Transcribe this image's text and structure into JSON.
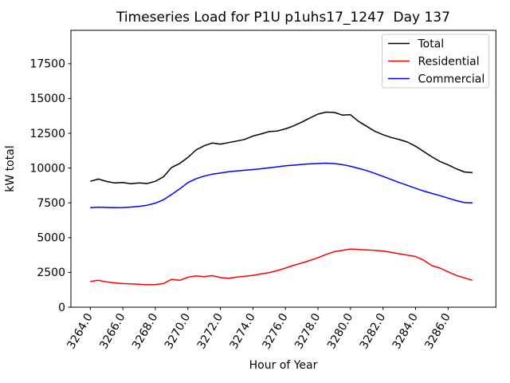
{
  "chart_data": {
    "type": "line",
    "title": "Timeseries Load for P1U p1uhs17_1247  Day 137",
    "xlabel": "Hour of Year",
    "ylabel": "kW total",
    "xlim": [
      3262.81,
      3288.94
    ],
    "ylim": [
      0,
      19900
    ],
    "grid": false,
    "legend_position": "upper right",
    "xticks": {
      "values": [
        3264,
        3266,
        3268,
        3270,
        3272,
        3274,
        3276,
        3278,
        3280,
        3282,
        3284,
        3286
      ],
      "labels": [
        "3264.0",
        "3266.0",
        "3268.0",
        "3270.0",
        "3272.0",
        "3274.0",
        "3276.0",
        "3278.0",
        "3280.0",
        "3282.0",
        "3284.0",
        "3286.0"
      ],
      "rotation": 60
    },
    "yticks": {
      "values": [
        0,
        2500,
        5000,
        7500,
        10000,
        12500,
        15000,
        17500
      ],
      "labels": [
        "0",
        "2500",
        "5000",
        "7500",
        "10000",
        "12500",
        "15000",
        "17500"
      ]
    },
    "x": [
      3264.0,
      3264.5,
      3265.0,
      3265.5,
      3266.0,
      3266.5,
      3267.0,
      3267.5,
      3268.0,
      3268.5,
      3269.0,
      3269.5,
      3270.0,
      3270.5,
      3271.0,
      3271.5,
      3272.0,
      3272.5,
      3273.0,
      3273.5,
      3274.0,
      3274.5,
      3275.0,
      3275.5,
      3276.0,
      3276.5,
      3277.0,
      3277.5,
      3278.0,
      3278.5,
      3279.0,
      3279.5,
      3280.0,
      3280.5,
      3281.0,
      3281.5,
      3282.0,
      3282.5,
      3283.0,
      3283.5,
      3284.0,
      3284.5,
      3285.0,
      3285.5,
      3286.0,
      3286.5,
      3287.0,
      3287.5
    ],
    "series": [
      {
        "name": "Total",
        "color": "#000000",
        "values": [
          9050,
          9210,
          9040,
          8930,
          8960,
          8870,
          8930,
          8890,
          9050,
          9370,
          10040,
          10330,
          10760,
          11300,
          11600,
          11800,
          11720,
          11830,
          11940,
          12060,
          12300,
          12450,
          12620,
          12660,
          12820,
          13030,
          13300,
          13600,
          13880,
          14020,
          14000,
          13810,
          13830,
          13350,
          13000,
          12640,
          12400,
          12200,
          12050,
          11870,
          11570,
          11190,
          10810,
          10470,
          10230,
          9950,
          9720,
          9670
        ]
      },
      {
        "name": "Residential",
        "color": "#ff0000",
        "values": [
          1850,
          1940,
          1810,
          1750,
          1700,
          1680,
          1650,
          1610,
          1630,
          1700,
          2000,
          1930,
          2150,
          2250,
          2190,
          2270,
          2130,
          2080,
          2170,
          2220,
          2290,
          2390,
          2490,
          2630,
          2810,
          3010,
          3170,
          3360,
          3560,
          3790,
          3990,
          4090,
          4180,
          4150,
          4120,
          4090,
          4040,
          3940,
          3840,
          3740,
          3640,
          3380,
          2990,
          2810,
          2540,
          2290,
          2110,
          1940
        ]
      },
      {
        "name": "Commercial",
        "color": "#0000ff",
        "values": [
          7150,
          7190,
          7170,
          7150,
          7160,
          7200,
          7250,
          7330,
          7480,
          7720,
          8100,
          8500,
          8950,
          9230,
          9420,
          9560,
          9640,
          9730,
          9790,
          9840,
          9890,
          9950,
          10020,
          10090,
          10160,
          10210,
          10260,
          10300,
          10330,
          10350,
          10320,
          10250,
          10130,
          9980,
          9820,
          9620,
          9400,
          9180,
          8960,
          8760,
          8550,
          8350,
          8180,
          8020,
          7840,
          7660,
          7520,
          7500
        ]
      }
    ]
  }
}
